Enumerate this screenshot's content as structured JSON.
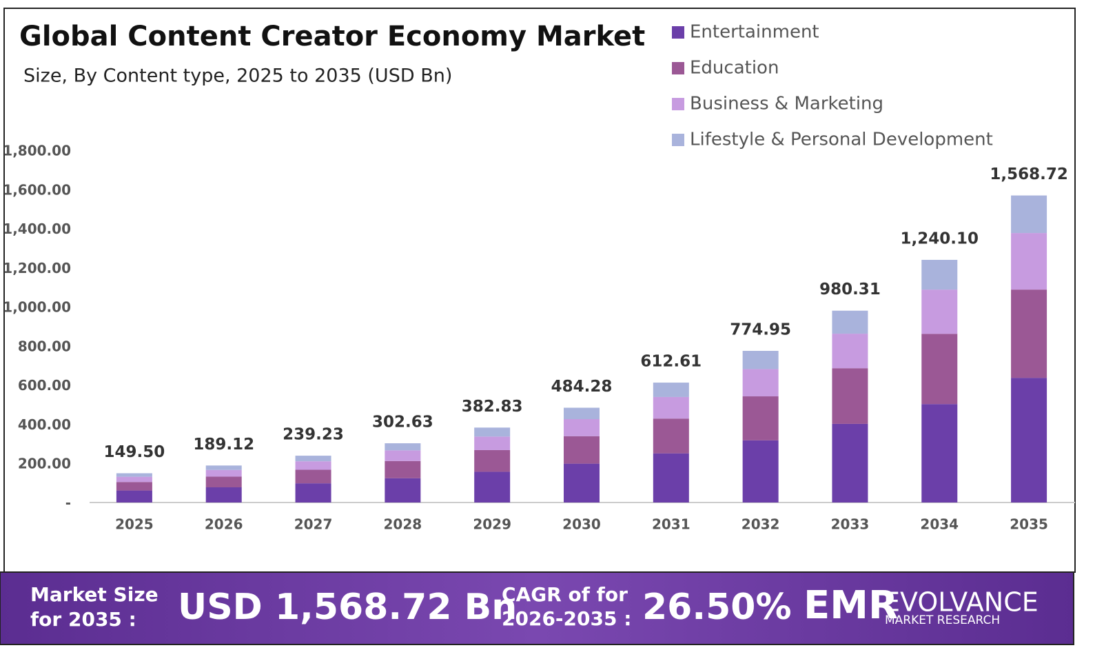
{
  "chart_data": {
    "type": "bar",
    "stacked": true,
    "title": "Global Content Creator Economy Market",
    "subtitle": "Size, By Content type, 2025 to 2035 (USD Bn)",
    "categories": [
      "2025",
      "2026",
      "2027",
      "2028",
      "2029",
      "2030",
      "2031",
      "2032",
      "2033",
      "2034",
      "2035"
    ],
    "series": [
      {
        "name": "Entertainment",
        "color": "#6b3fa9",
        "values": [
          61.3,
          77.5,
          98.1,
          124.1,
          157.0,
          198.6,
          251.2,
          317.7,
          401.9,
          503,
          637
        ]
      },
      {
        "name": "Education",
        "color": "#9b5895",
        "values": [
          43.4,
          54.8,
          69.4,
          87.8,
          111.0,
          140.4,
          177.7,
          224.7,
          284.3,
          359,
          451
        ]
      },
      {
        "name": "Business & Marketing",
        "color": "#c79be0",
        "values": [
          26.9,
          34.0,
          43.1,
          54.5,
          68.9,
          87.2,
          110.3,
          139.5,
          176.5,
          226,
          289
        ]
      },
      {
        "name": "Lifestyle & Personal Development",
        "color": "#a9b3dc",
        "values": [
          17.9,
          22.7,
          28.7,
          36.3,
          45.9,
          58.1,
          73.5,
          93.0,
          117.6,
          152,
          192
        ]
      }
    ],
    "totals": [
      149.5,
      189.12,
      239.23,
      302.63,
      382.83,
      484.28,
      612.61,
      774.95,
      980.31,
      1240.1,
      1568.72
    ],
    "total_labels": [
      "149.50",
      "189.12",
      "239.23",
      "302.63",
      "382.83",
      "484.28",
      "612.61",
      "774.95",
      "980.31",
      "1,240.10",
      "1,568.72"
    ],
    "ylim": [
      0,
      1800
    ],
    "yticks": [
      {
        "value": 0,
        "label": "-"
      },
      {
        "value": 200,
        "label": "200.00"
      },
      {
        "value": 400,
        "label": "400.00"
      },
      {
        "value": 600,
        "label": "600.00"
      },
      {
        "value": 800,
        "label": "800.00"
      },
      {
        "value": 1000,
        "label": "1,000.00"
      },
      {
        "value": 1200,
        "label": "1,200.00"
      },
      {
        "value": 1400,
        "label": "1,400.00"
      },
      {
        "value": 1600,
        "label": "1,600.00"
      },
      {
        "value": 1800,
        "label": "1,800.00"
      }
    ],
    "grid": false,
    "legend": "top-right"
  },
  "footer": {
    "market_label_1": "Market Size",
    "market_label_2": "for 2035 :",
    "market_value": "USD 1,568.72 Bn",
    "cagr_label_1": "CAGR of for",
    "cagr_label_2": "2026-2035 :",
    "cagr_value": "26.50%",
    "logo_mark": "EMR",
    "logo_name": "EVOLVANCE",
    "logo_sub": "MARKET RESEARCH"
  }
}
